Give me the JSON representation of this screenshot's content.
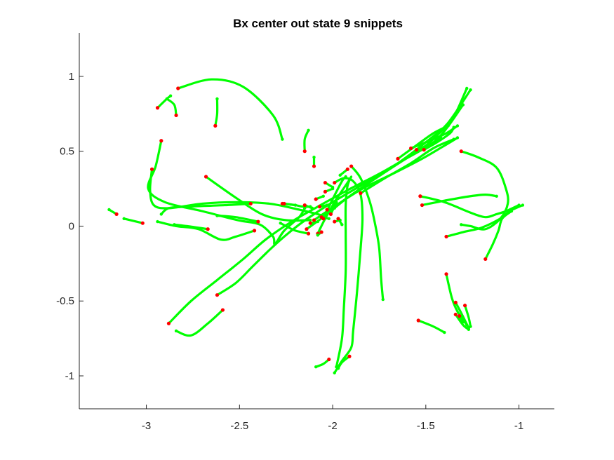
{
  "chart_data": {
    "type": "line",
    "title": "Bx  center out state 9 snippets",
    "xlabel": "",
    "ylabel": "",
    "xlim": [
      -3.36,
      -0.81
    ],
    "ylim": [
      -1.22,
      1.29
    ],
    "xticks": [
      -3,
      -2.5,
      -2,
      -1.5,
      -1
    ],
    "xtick_labels": [
      "-3",
      "-2.5",
      "-2",
      "-1.5",
      "-1"
    ],
    "yticks": [
      -1,
      -0.5,
      0,
      0.5,
      1
    ],
    "ytick_labels": [
      "-1",
      "-0.5",
      "0",
      "0.5",
      "1"
    ],
    "grid": false,
    "legend": false,
    "colors": {
      "trajectory": "#00ff00",
      "endpoint": "#ff0000",
      "axis": "#262626"
    },
    "series": [
      {
        "points": [
          [
            -2.83,
            0.92
          ],
          [
            -2.65,
            0.98
          ],
          [
            -2.48,
            0.93
          ],
          [
            -2.32,
            0.74
          ],
          [
            -2.27,
            0.58
          ]
        ]
      },
      {
        "points": [
          [
            -2.94,
            0.79
          ],
          [
            -2.89,
            0.85
          ],
          [
            -2.87,
            0.87
          ]
        ]
      },
      {
        "points": [
          [
            -2.84,
            0.74
          ],
          [
            -2.85,
            0.81
          ],
          [
            -2.89,
            0.85
          ]
        ]
      },
      {
        "points": [
          [
            -2.63,
            0.67
          ],
          [
            -2.62,
            0.75
          ],
          [
            -2.62,
            0.85
          ]
        ]
      },
      {
        "points": [
          [
            -2.15,
            0.5
          ],
          [
            -2.15,
            0.58
          ],
          [
            -2.13,
            0.64
          ]
        ]
      },
      {
        "points": [
          [
            -2.1,
            0.4
          ],
          [
            -2.1,
            0.46
          ]
        ]
      },
      {
        "points": [
          [
            -2.92,
            0.57
          ],
          [
            -2.95,
            0.4
          ],
          [
            -2.99,
            0.25
          ],
          [
            -2.9,
            0.16
          ],
          [
            -2.7,
            0.1
          ],
          [
            -2.51,
            0.04
          ],
          [
            -2.39,
            0.01
          ],
          [
            -2.32,
            -0.07
          ],
          [
            -2.31,
            -0.12
          ],
          [
            -2.26,
            -0.03
          ],
          [
            -2.18,
            0.06
          ],
          [
            -2.15,
            0.12
          ]
        ]
      },
      {
        "points": [
          [
            -2.97,
            0.38
          ],
          [
            -2.98,
            0.24
          ],
          [
            -2.96,
            0.14
          ],
          [
            -2.88,
            0.12
          ],
          [
            -2.7,
            0.15
          ],
          [
            -2.52,
            0.16
          ],
          [
            -2.34,
            0.15
          ],
          [
            -2.18,
            0.11
          ],
          [
            -2.05,
            0.07
          ]
        ]
      },
      {
        "points": [
          [
            -2.68,
            0.33
          ],
          [
            -2.52,
            0.19
          ],
          [
            -2.38,
            0.08
          ],
          [
            -2.25,
            0.04
          ],
          [
            -2.12,
            0.04
          ]
        ]
      },
      {
        "points": [
          [
            -2.44,
            0.15
          ],
          [
            -2.58,
            0.14
          ],
          [
            -2.78,
            0.13
          ],
          [
            -2.88,
            0.12
          ],
          [
            -2.92,
            0.08
          ]
        ]
      },
      {
        "points": [
          [
            -2.4,
            0.03
          ],
          [
            -2.52,
            0.06
          ],
          [
            -2.62,
            0.07
          ]
        ]
      },
      {
        "points": [
          [
            -2.42,
            -0.03
          ],
          [
            -2.52,
            -0.07
          ],
          [
            -2.6,
            -0.09
          ],
          [
            -2.72,
            -0.02
          ],
          [
            -2.84,
            0.0
          ],
          [
            -2.94,
            0.03
          ]
        ]
      },
      {
        "points": [
          [
            -2.67,
            -0.02
          ],
          [
            -2.78,
            0.0
          ],
          [
            -2.85,
            0.01
          ]
        ]
      },
      {
        "points": [
          [
            -3.02,
            0.02
          ],
          [
            -3.12,
            0.05
          ]
        ]
      },
      {
        "points": [
          [
            -3.16,
            0.08
          ],
          [
            -3.2,
            0.11
          ]
        ]
      },
      {
        "points": [
          [
            -2.26,
            0.15
          ],
          [
            -2.2,
            0.14
          ],
          [
            -2.16,
            0.13
          ],
          [
            -2.12,
            0.13
          ]
        ]
      },
      {
        "points": [
          [
            -2.13,
            -0.05
          ],
          [
            -2.2,
            -0.03
          ],
          [
            -2.25,
            0.0
          ],
          [
            -2.28,
            0.02
          ]
        ]
      },
      {
        "points": [
          [
            -2.88,
            -0.65
          ],
          [
            -2.76,
            -0.5
          ],
          [
            -2.62,
            -0.36
          ],
          [
            -2.48,
            -0.22
          ],
          [
            -2.36,
            -0.09
          ],
          [
            -2.22,
            0.03
          ],
          [
            -2.08,
            0.13
          ],
          [
            -1.92,
            0.24
          ],
          [
            -1.72,
            0.37
          ],
          [
            -1.52,
            0.52
          ],
          [
            -1.42,
            0.63
          ],
          [
            -1.35,
            0.73
          ],
          [
            -1.28,
            0.92
          ]
        ]
      },
      {
        "points": [
          [
            -2.62,
            -0.46
          ],
          [
            -2.52,
            -0.38
          ],
          [
            -2.43,
            -0.27
          ],
          [
            -2.34,
            -0.16
          ],
          [
            -2.26,
            -0.07
          ],
          [
            -2.18,
            0.01
          ],
          [
            -2.1,
            0.08
          ],
          [
            -2.0,
            0.16
          ],
          [
            -1.85,
            0.27
          ],
          [
            -1.65,
            0.42
          ],
          [
            -1.48,
            0.58
          ],
          [
            -1.38,
            0.69
          ],
          [
            -1.26,
            0.91
          ]
        ]
      },
      {
        "points": [
          [
            -2.14,
            -0.02
          ],
          [
            -2.04,
            0.07
          ],
          [
            -1.92,
            0.19
          ],
          [
            -1.78,
            0.31
          ],
          [
            -1.62,
            0.44
          ],
          [
            -1.44,
            0.58
          ],
          [
            -1.3,
            0.81
          ]
        ]
      },
      {
        "points": [
          [
            -2.1,
            0.04
          ],
          [
            -1.98,
            0.14
          ],
          [
            -1.84,
            0.25
          ],
          [
            -1.66,
            0.36
          ],
          [
            -1.52,
            0.45
          ],
          [
            -1.41,
            0.53
          ],
          [
            -1.33,
            0.59
          ]
        ]
      },
      {
        "points": [
          [
            -1.65,
            0.45
          ],
          [
            -1.55,
            0.54
          ],
          [
            -1.46,
            0.62
          ],
          [
            -1.38,
            0.67
          ]
        ]
      },
      {
        "points": [
          [
            -1.58,
            0.52
          ],
          [
            -1.48,
            0.57
          ],
          [
            -1.39,
            0.62
          ],
          [
            -1.33,
            0.67
          ]
        ]
      },
      {
        "points": [
          [
            -1.55,
            0.51
          ],
          [
            -1.47,
            0.55
          ],
          [
            -1.42,
            0.59
          ]
        ]
      },
      {
        "points": [
          [
            -1.51,
            0.51
          ],
          [
            -1.44,
            0.56
          ],
          [
            -1.37,
            0.62
          ],
          [
            -1.35,
            0.66
          ]
        ]
      },
      {
        "points": [
          [
            -1.85,
            0.22
          ],
          [
            -1.72,
            0.32
          ],
          [
            -1.58,
            0.42
          ],
          [
            -1.46,
            0.52
          ],
          [
            -1.35,
            0.58
          ]
        ]
      },
      {
        "points": [
          [
            -1.31,
            0.5
          ],
          [
            -1.22,
            0.46
          ],
          [
            -1.12,
            0.39
          ],
          [
            -1.07,
            0.25
          ],
          [
            -1.06,
            0.15
          ],
          [
            -1.1,
            0.05
          ],
          [
            -1.18,
            -0.02
          ],
          [
            -1.26,
            0.0
          ],
          [
            -1.31,
            0.01
          ]
        ]
      },
      {
        "points": [
          [
            -1.53,
            0.2
          ],
          [
            -1.4,
            0.16
          ],
          [
            -1.26,
            0.09
          ],
          [
            -1.18,
            0.06
          ],
          [
            -1.12,
            0.08
          ],
          [
            -1.07,
            0.1
          ],
          [
            -1.0,
            0.14
          ]
        ]
      },
      {
        "points": [
          [
            -1.52,
            0.14
          ],
          [
            -1.4,
            0.17
          ],
          [
            -1.26,
            0.2
          ],
          [
            -1.18,
            0.21
          ],
          [
            -1.12,
            0.2
          ]
        ]
      },
      {
        "points": [
          [
            -1.39,
            -0.07
          ],
          [
            -1.3,
            -0.04
          ],
          [
            -1.2,
            -0.01
          ],
          [
            -1.1,
            0.05
          ],
          [
            -1.05,
            0.1
          ],
          [
            -0.98,
            0.14
          ]
        ]
      },
      {
        "points": [
          [
            -1.18,
            -0.22
          ],
          [
            -1.14,
            -0.12
          ],
          [
            -1.11,
            -0.03
          ],
          [
            -1.09,
            0.05
          ],
          [
            -1.04,
            0.1
          ]
        ]
      },
      {
        "points": [
          [
            -1.9,
            0.4
          ],
          [
            -1.85,
            0.32
          ],
          [
            -1.8,
            0.16
          ],
          [
            -1.77,
            0.0
          ],
          [
            -1.75,
            -0.15
          ],
          [
            -1.74,
            -0.35
          ],
          [
            -1.73,
            -0.49
          ]
        ]
      },
      {
        "points": [
          [
            -2.08,
            -0.05
          ],
          [
            -2.04,
            0.05
          ],
          [
            -1.98,
            0.18
          ],
          [
            -1.92,
            0.29
          ],
          [
            -1.9,
            0.33
          ],
          [
            -1.92,
            0.27
          ],
          [
            -1.93,
            0.14
          ],
          [
            -1.93,
            -0.05
          ],
          [
            -1.93,
            -0.3
          ],
          [
            -1.94,
            -0.55
          ],
          [
            -1.95,
            -0.75
          ],
          [
            -1.98,
            -0.94
          ]
        ]
      },
      {
        "points": [
          [
            -2.05,
            0.05
          ],
          [
            -2.0,
            0.18
          ],
          [
            -1.95,
            0.3
          ],
          [
            -1.93,
            0.33
          ]
        ]
      },
      {
        "points": [
          [
            -1.99,
            0.29
          ],
          [
            -1.94,
            0.32
          ],
          [
            -1.89,
            0.3
          ],
          [
            -1.85,
            0.21
          ],
          [
            -1.84,
            0.05
          ],
          [
            -1.85,
            -0.15
          ],
          [
            -1.87,
            -0.45
          ],
          [
            -1.89,
            -0.7
          ],
          [
            -1.9,
            -0.81
          ],
          [
            -1.95,
            -0.9
          ],
          [
            -1.99,
            -0.98
          ]
        ]
      },
      {
        "points": [
          [
            -2.02,
            -0.89
          ],
          [
            -2.05,
            -0.92
          ],
          [
            -2.09,
            -0.94
          ]
        ]
      },
      {
        "points": [
          [
            -1.91,
            -0.87
          ],
          [
            -1.95,
            -0.91
          ],
          [
            -1.97,
            -0.95
          ]
        ]
      },
      {
        "points": [
          [
            -2.59,
            -0.56
          ],
          [
            -2.67,
            -0.65
          ],
          [
            -2.76,
            -0.73
          ],
          [
            -2.84,
            -0.7
          ]
        ]
      },
      {
        "points": [
          [
            -1.54,
            -0.63
          ],
          [
            -1.46,
            -0.67
          ],
          [
            -1.4,
            -0.71
          ]
        ]
      },
      {
        "points": [
          [
            -1.39,
            -0.32
          ],
          [
            -1.36,
            -0.48
          ],
          [
            -1.33,
            -0.57
          ],
          [
            -1.28,
            -0.66
          ]
        ]
      },
      {
        "points": [
          [
            -1.34,
            -0.51
          ],
          [
            -1.31,
            -0.58
          ],
          [
            -1.27,
            -0.68
          ]
        ]
      },
      {
        "points": [
          [
            -1.34,
            -0.59
          ],
          [
            -1.3,
            -0.66
          ],
          [
            -1.27,
            -0.69
          ]
        ]
      },
      {
        "points": [
          [
            -1.29,
            -0.53
          ],
          [
            -1.27,
            -0.61
          ],
          [
            -1.26,
            -0.67
          ]
        ]
      },
      {
        "points": [
          [
            -1.32,
            -0.6
          ],
          [
            -1.3,
            -0.64
          ]
        ]
      },
      {
        "points": [
          [
            -2.27,
            0.15
          ],
          [
            -2.2,
            0.14
          ]
        ]
      },
      {
        "points": [
          [
            -2.15,
            0.14
          ],
          [
            -2.11,
            0.12
          ]
        ]
      },
      {
        "points": [
          [
            -2.09,
            0.18
          ],
          [
            -2.05,
            0.2
          ]
        ]
      },
      {
        "points": [
          [
            -2.04,
            0.23
          ],
          [
            -2.0,
            0.25
          ]
        ]
      },
      {
        "points": [
          [
            -2.06,
            0.06
          ],
          [
            -2.02,
            0.05
          ]
        ]
      },
      {
        "points": [
          [
            -2.03,
            0.11
          ],
          [
            -1.99,
            0.12
          ]
        ]
      },
      {
        "points": [
          [
            -1.99,
            0.03
          ],
          [
            -1.96,
            0.04
          ]
        ]
      },
      {
        "points": [
          [
            -2.12,
            0.02
          ],
          [
            -2.08,
            0.03
          ]
        ]
      },
      {
        "points": [
          [
            -2.06,
            -0.04
          ],
          [
            -2.08,
            -0.06
          ]
        ]
      },
      {
        "points": [
          [
            -2.01,
            0.08
          ],
          [
            -1.98,
            0.16
          ]
        ]
      },
      {
        "points": [
          [
            -1.97,
            0.05
          ],
          [
            -1.95,
            0.01
          ]
        ]
      },
      {
        "points": [
          [
            -2.07,
            0.13
          ],
          [
            -2.03,
            0.14
          ]
        ]
      },
      {
        "points": [
          [
            -2.04,
            0.29
          ],
          [
            -2.0,
            0.26
          ]
        ]
      },
      {
        "points": [
          [
            -1.92,
            0.38
          ],
          [
            -1.96,
            0.34
          ]
        ]
      }
    ]
  }
}
